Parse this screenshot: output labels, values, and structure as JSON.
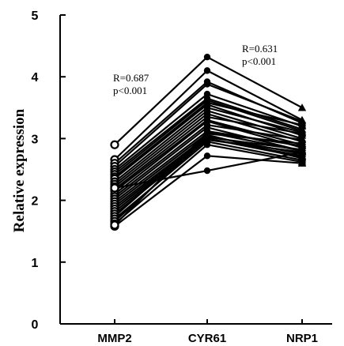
{
  "chart_data": {
    "type": "line",
    "title": "",
    "xlabel": "",
    "ylabel": "Relative expression",
    "categories": [
      "MMP2",
      "CYR61",
      "NRP1"
    ],
    "yticks": [
      "0",
      "1",
      "2",
      "3",
      "4",
      "5"
    ],
    "ylim": [
      0,
      5
    ],
    "grid": false,
    "legend": "none",
    "markers": [
      "open-circle",
      "filled-circle",
      "filled-triangle"
    ],
    "annotations": [
      {
        "line1": "R=0.687",
        "line2": "p<0.001",
        "near": "MMP2-CYR61"
      },
      {
        "line1": "R=0.631",
        "line2": "p<0.001",
        "near": "CYR61-NRP1"
      }
    ],
    "series": [
      {
        "values": [
          2.9,
          4.32,
          3.5
        ]
      },
      {
        "values": [
          2.66,
          4.1,
          3.3
        ]
      },
      {
        "values": [
          2.6,
          3.92,
          3.25
        ]
      },
      {
        "values": [
          2.55,
          3.88,
          3.28
        ]
      },
      {
        "values": [
          2.5,
          3.72,
          3.2
        ]
      },
      {
        "values": [
          2.46,
          3.65,
          3.15
        ]
      },
      {
        "values": [
          2.42,
          3.62,
          3.12
        ]
      },
      {
        "values": [
          2.38,
          3.58,
          3.22
        ]
      },
      {
        "values": [
          2.35,
          3.55,
          3.05
        ]
      },
      {
        "values": [
          2.3,
          3.5,
          3.1
        ]
      },
      {
        "values": [
          2.26,
          3.45,
          3.0
        ]
      },
      {
        "values": [
          2.22,
          3.4,
          2.95
        ]
      },
      {
        "values": [
          2.18,
          3.35,
          3.08
        ]
      },
      {
        "values": [
          2.15,
          3.3,
          2.9
        ]
      },
      {
        "values": [
          2.1,
          3.28,
          2.85
        ]
      },
      {
        "values": [
          2.06,
          3.22,
          2.98
        ]
      },
      {
        "values": [
          2.02,
          3.18,
          2.8
        ]
      },
      {
        "values": [
          1.98,
          3.12,
          2.88
        ]
      },
      {
        "values": [
          1.94,
          3.08,
          2.92
        ]
      },
      {
        "values": [
          1.9,
          3.04,
          2.75
        ]
      },
      {
        "values": [
          1.86,
          3.02,
          2.82
        ]
      },
      {
        "values": [
          1.82,
          3.0,
          2.7
        ]
      },
      {
        "values": [
          1.78,
          2.98,
          2.78
        ]
      },
      {
        "values": [
          1.74,
          3.06,
          2.68
        ]
      },
      {
        "values": [
          1.7,
          2.95,
          2.65
        ]
      },
      {
        "values": [
          1.66,
          3.0,
          2.72
        ]
      },
      {
        "values": [
          1.62,
          2.9,
          2.62
        ]
      },
      {
        "values": [
          1.58,
          2.72,
          2.6
        ]
      },
      {
        "values": [
          2.2,
          2.48,
          2.78
        ]
      },
      {
        "values": [
          1.6,
          3.1,
          2.8
        ]
      }
    ]
  }
}
